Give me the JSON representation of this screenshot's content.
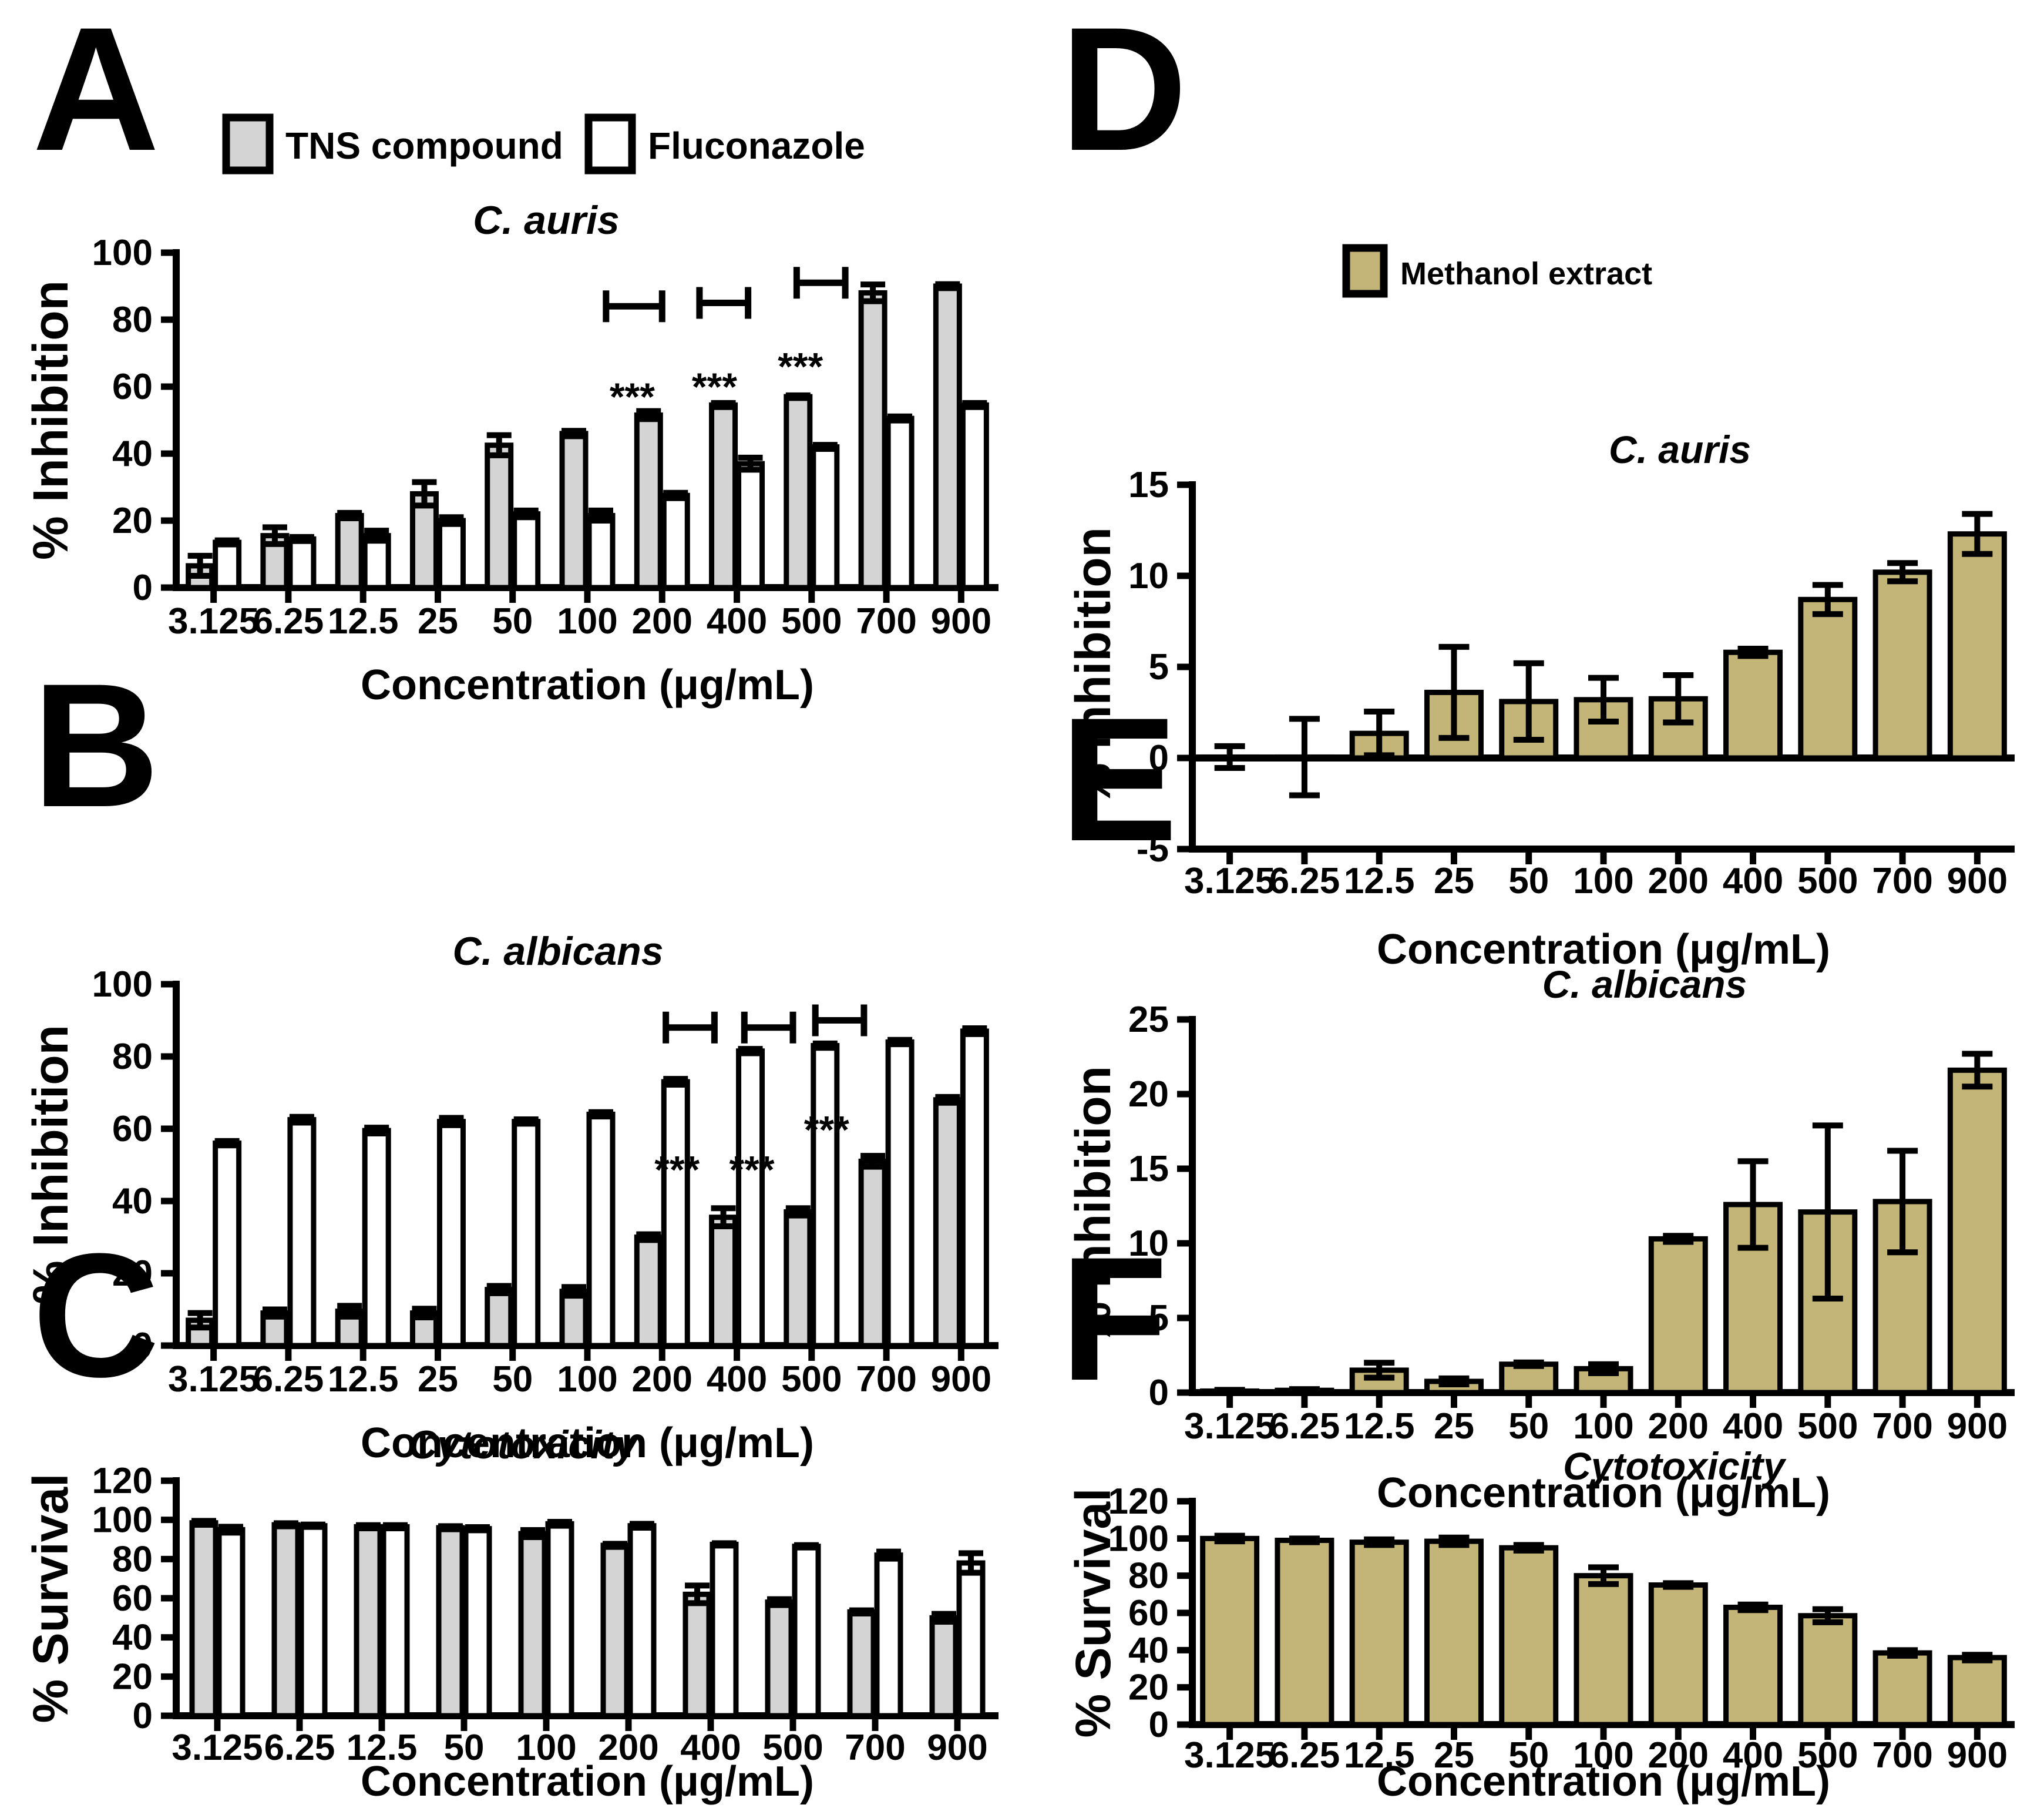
{
  "figure": {
    "background": "#ffffff",
    "axis_color": "#000000",
    "series_colors": {
      "tns": "#D4D4D4",
      "fluconazole": "#FFFFFF",
      "methanol": "#C3B577"
    },
    "significance_label": "***"
  },
  "chart_data": [
    {
      "panel_letter": "A",
      "type": "bar",
      "title": "C. auris",
      "xlabel": "Concentration (μg/mL)",
      "ylabel": "% Inhibition",
      "ylim": [
        0,
        100
      ],
      "yticks": [
        0,
        20,
        40,
        60,
        80,
        100
      ],
      "grid": false,
      "legend": true,
      "legend_position": "top",
      "categories": [
        "3.125",
        "6.25",
        "12.5",
        "25",
        "50",
        "100",
        "200",
        "400",
        "500",
        "700",
        "900"
      ],
      "series": [
        {
          "name": "TNS compound",
          "color": "#D4D4D4",
          "values": [
            6.5,
            15.5,
            21.5,
            28,
            42.5,
            46,
            51.5,
            54.5,
            57,
            88,
            90
          ],
          "errors": [
            3,
            2.5,
            0.8,
            3.5,
            3,
            0.8,
            1.2,
            0.6,
            0.4,
            2.5,
            0.6
          ]
        },
        {
          "name": "Fluconazole",
          "color": "#FFFFFF",
          "values": [
            13.5,
            14.5,
            15.5,
            20,
            22,
            21.5,
            27.5,
            37,
            42,
            50.5,
            54.5
          ],
          "errors": [
            0.6,
            0.6,
            1.5,
            1,
            1,
            1.5,
            0.8,
            1.8,
            0.6,
            0.6,
            0.6
          ]
        }
      ],
      "brackets": [
        {
          "x1": 5.25,
          "x2": 6.0,
          "y": 84
        },
        {
          "x1": 6.5,
          "x2": 7.15,
          "y": 85
        },
        {
          "x1": 7.8,
          "x2": 8.45,
          "y": 91
        }
      ],
      "stars": [
        {
          "x": 5.6,
          "y": 53,
          "label": "***"
        },
        {
          "x": 6.7,
          "y": 56,
          "label": "***"
        },
        {
          "x": 7.85,
          "y": 62,
          "label": "***"
        }
      ]
    },
    {
      "panel_letter": "B",
      "type": "bar",
      "title": "C. albicans",
      "xlabel": "Concentration (μg/mL)",
      "ylabel": "% Inhibition",
      "ylim": [
        0,
        100
      ],
      "yticks": [
        0,
        20,
        40,
        60,
        80,
        100
      ],
      "grid": false,
      "legend": false,
      "categories": [
        "3.125",
        "6.25",
        "12.5",
        "25",
        "50",
        "100",
        "200",
        "400",
        "500",
        "700",
        "900"
      ],
      "series": [
        {
          "name": "TNS compound",
          "color": "#D4D4D4",
          "values": [
            7,
            9,
            9.5,
            9,
            15.5,
            15,
            30,
            35.5,
            37,
            51,
            68
          ],
          "errors": [
            2,
            1,
            1.5,
            1.2,
            1,
            1.2,
            0.8,
            2.5,
            1,
            1.5,
            0.8
          ]
        },
        {
          "name": "Fluconazole",
          "color": "#FFFFFF",
          "values": [
            56,
            62.5,
            59.5,
            62,
            62,
            64,
            73,
            81.5,
            83,
            84,
            87
          ],
          "errors": [
            0.6,
            0.8,
            0.8,
            1,
            0.6,
            0.6,
            0.8,
            0.6,
            0.6,
            0.6,
            0.8
          ]
        }
      ],
      "brackets": [
        {
          "x1": 6.05,
          "x2": 6.7,
          "y": 88
        },
        {
          "x1": 7.1,
          "x2": 7.75,
          "y": 88
        },
        {
          "x1": 8.05,
          "x2": 8.7,
          "y": 90
        }
      ],
      "stars": [
        {
          "x": 6.2,
          "y": 45,
          "label": "***"
        },
        {
          "x": 7.2,
          "y": 45,
          "label": "***"
        },
        {
          "x": 8.2,
          "y": 56,
          "label": "***"
        }
      ]
    },
    {
      "panel_letter": "C",
      "type": "bar",
      "title": "Cytotoxicity",
      "xlabel": "Concentration (μg/mL)",
      "ylabel": "% Survival",
      "ylim": [
        0,
        120
      ],
      "yticks": [
        0,
        20,
        40,
        60,
        80,
        100,
        120
      ],
      "grid": false,
      "legend": false,
      "categories": [
        "3.125",
        "6.25",
        "12.5",
        "50",
        "100",
        "200",
        "400",
        "500",
        "700",
        "900"
      ],
      "series": [
        {
          "name": "TNS compound",
          "color": "#D4D4D4",
          "values": [
            98.5,
            97.5,
            96.5,
            96,
            93,
            87,
            62,
            58,
            53,
            50
          ],
          "errors": [
            1,
            0.8,
            0.8,
            0.8,
            1.8,
            0.8,
            4.5,
            1.5,
            0.8,
            2
          ]
        },
        {
          "name": "Fluconazole",
          "color": "#FFFFFF",
          "values": [
            95,
            97,
            96.5,
            95.5,
            98,
            97,
            87.5,
            86.5,
            82,
            78
          ],
          "errors": [
            1.5,
            0.6,
            0.8,
            0.8,
            1,
            1,
            0.6,
            0.6,
            1.8,
            5
          ]
        }
      ],
      "brackets": [],
      "stars": []
    },
    {
      "panel_letter": "D",
      "type": "bar",
      "title": "C. auris",
      "xlabel": "Concentration (μg/mL)",
      "ylabel": "% Inhibition",
      "ylim": [
        -5,
        15
      ],
      "yticks": [
        -5,
        0,
        5,
        10,
        15
      ],
      "grid": false,
      "legend": true,
      "legend_position": "top",
      "categories": [
        "3.125",
        "6.25",
        "12.5",
        "25",
        "50",
        "100",
        "200",
        "400",
        "500",
        "700",
        "900"
      ],
      "series": [
        {
          "name": "Methanol extract",
          "color": "#C3B577",
          "values": [
            0.05,
            0.05,
            1.35,
            3.6,
            3.1,
            3.2,
            3.25,
            5.8,
            8.7,
            10.2,
            12.3
          ],
          "errors": [
            0.6,
            2.1,
            1.2,
            2.5,
            2.1,
            1.2,
            1.3,
            0.2,
            0.8,
            0.5,
            1.1
          ]
        }
      ],
      "brackets": [],
      "stars": []
    },
    {
      "panel_letter": "E",
      "type": "bar",
      "title": "C. albicans",
      "xlabel": "Concentration (μg/mL)",
      "ylabel": "% Inhibition",
      "ylim": [
        0,
        25
      ],
      "yticks": [
        0,
        5,
        10,
        15,
        20,
        25
      ],
      "grid": false,
      "legend": false,
      "categories": [
        "3.125",
        "6.25",
        "12.5",
        "25",
        "50",
        "100",
        "200",
        "400",
        "500",
        "700",
        "900"
      ],
      "series": [
        {
          "name": "Methanol extract",
          "color": "#C3B577",
          "values": [
            0.1,
            0.15,
            1.5,
            0.75,
            1.9,
            1.6,
            10.3,
            12.6,
            12.1,
            12.8,
            21.6
          ],
          "errors": [
            0.08,
            0.08,
            0.5,
            0.2,
            0.12,
            0.3,
            0.2,
            2.9,
            5.8,
            3.4,
            1.1
          ]
        }
      ],
      "brackets": [],
      "stars": []
    },
    {
      "panel_letter": "F",
      "type": "bar",
      "title": "Cytotoxicity",
      "xlabel": "Concentration (μg/mL)",
      "ylabel": "% Survival",
      "ylim": [
        0,
        120
      ],
      "yticks": [
        0,
        20,
        40,
        60,
        80,
        100,
        120
      ],
      "grid": false,
      "legend": false,
      "categories": [
        "3.125",
        "6.25",
        "12.5",
        "25",
        "50",
        "100",
        "200",
        "400",
        "500",
        "700",
        "900"
      ],
      "series": [
        {
          "name": "Methanol extract",
          "color": "#C3B577",
          "values": [
            100,
            99,
            98,
            98.5,
            95,
            80,
            75,
            63,
            58.5,
            38.5,
            36
          ],
          "errors": [
            1.5,
            1,
            1.5,
            2,
            1.5,
            4.5,
            1,
            1.5,
            3.5,
            1.5,
            1.5
          ]
        }
      ],
      "brackets": [],
      "stars": []
    }
  ]
}
